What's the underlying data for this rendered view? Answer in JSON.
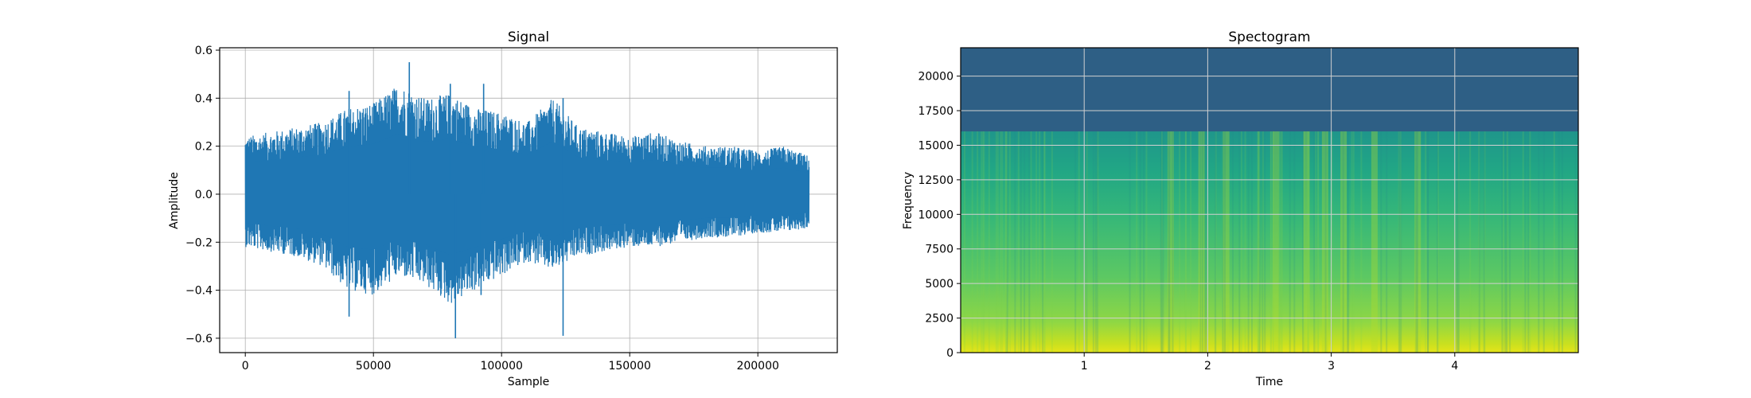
{
  "chart_data": [
    {
      "type": "line",
      "title": "Signal",
      "xlabel": "Sample",
      "ylabel": "Amplitude",
      "xlim": [
        -10000,
        231000
      ],
      "ylim": [
        -0.66,
        0.61
      ],
      "xticks": [
        0,
        50000,
        100000,
        150000,
        200000
      ],
      "xtick_labels": [
        "0",
        "50000",
        "100000",
        "150000",
        "200000"
      ],
      "yticks": [
        -0.6,
        -0.4,
        -0.2,
        0.0,
        0.2,
        0.4,
        0.6
      ],
      "ytick_labels": [
        "−0.6",
        "−0.4",
        "−0.2",
        "0.0",
        "0.2",
        "0.4",
        "0.6"
      ],
      "grid": true,
      "line_color": "#1f77b4",
      "series": [
        {
          "x": [
            0,
            10000,
            20000,
            30000,
            40000,
            50000,
            60000,
            70000,
            80000,
            90000,
            100000,
            110000,
            120000,
            130000,
            140000,
            150000,
            160000,
            170000,
            180000,
            190000,
            200000,
            210000,
            220000
          ],
          "values": [
            0.0,
            0.02,
            -0.01,
            0.01,
            -0.02,
            0.03,
            -0.01,
            0.02,
            -0.03,
            0.01,
            -0.02,
            0.02,
            -0.01,
            0.01,
            0.0,
            -0.01,
            0.01,
            -0.01,
            0.0,
            0.01,
            -0.01,
            0.0,
            0.0
          ],
          "upper_envelope": [
            0.24,
            0.26,
            0.28,
            0.3,
            0.36,
            0.38,
            0.46,
            0.4,
            0.42,
            0.36,
            0.34,
            0.3,
            0.4,
            0.28,
            0.26,
            0.24,
            0.26,
            0.22,
            0.2,
            0.2,
            0.18,
            0.2,
            0.16
          ],
          "lower_envelope": [
            -0.22,
            -0.24,
            -0.26,
            -0.3,
            -0.4,
            -0.42,
            -0.34,
            -0.38,
            -0.46,
            -0.4,
            -0.34,
            -0.28,
            -0.32,
            -0.26,
            -0.24,
            -0.22,
            -0.22,
            -0.2,
            -0.18,
            -0.18,
            -0.16,
            -0.16,
            -0.14
          ],
          "peaks": [
            {
              "x": 40500,
              "y": 0.43
            },
            {
              "x": 64000,
              "y": 0.55
            },
            {
              "x": 80000,
              "y": 0.46
            },
            {
              "x": 93000,
              "y": 0.46
            },
            {
              "x": 124000,
              "y": 0.4
            }
          ],
          "troughs": [
            {
              "x": 40500,
              "y": -0.51
            },
            {
              "x": 82000,
              "y": -0.6
            },
            {
              "x": 92000,
              "y": -0.42
            },
            {
              "x": 124000,
              "y": -0.59
            }
          ]
        }
      ]
    },
    {
      "type": "heatmap",
      "title": "Spectogram",
      "xlabel": "Time",
      "ylabel": "Frequency",
      "xlim": [
        0,
        5
      ],
      "ylim": [
        0,
        22050
      ],
      "xticks": [
        1,
        2,
        3,
        4
      ],
      "xtick_labels": [
        "1",
        "2",
        "3",
        "4"
      ],
      "yticks": [
        0,
        2500,
        5000,
        7500,
        10000,
        12500,
        15000,
        17500,
        20000
      ],
      "ytick_labels": [
        "0",
        "2500",
        "5000",
        "7500",
        "10000",
        "12500",
        "15000",
        "17500",
        "20000"
      ],
      "grid": true,
      "colormap": "viridis",
      "colors": {
        "low": "#2e5f85",
        "mid": "#21908d",
        "high": "#b5de2b",
        "peak": "#e6e419"
      },
      "cutoff_frequency": 16000,
      "bright_time_bands": [
        1.7,
        1.95,
        2.15,
        2.55,
        2.8,
        2.95,
        3.1,
        3.35,
        3.7
      ]
    }
  ]
}
